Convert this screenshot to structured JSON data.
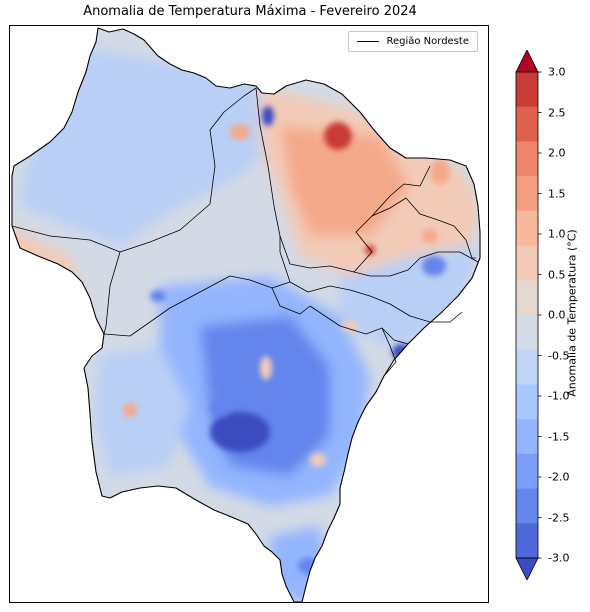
{
  "title": "Anomalia de Temperatura Máxima - Fevereiro 2024",
  "legend": {
    "label": "Região Nordeste"
  },
  "colorbar": {
    "label": "Anomalia de Temperatura (°C)",
    "min": -3.0,
    "max": 3.0,
    "ticks": [
      "3.0",
      "2.5",
      "2.0",
      "1.5",
      "1.0",
      "0.5",
      "0.0",
      "-0.5",
      "-1.0",
      "-1.5",
      "-2.0",
      "-2.5",
      "-3.0"
    ],
    "bins": [
      "#3b4cc0",
      "#4f69d9",
      "#6485ec",
      "#7b9ff9",
      "#93b5fe",
      "#aac7fd",
      "#c0d4f5",
      "#d5dbe5",
      "#e5d8d1",
      "#f2cbb7",
      "#f7b89c",
      "#f59f80",
      "#ee8468",
      "#de614d",
      "#c93b35",
      "#b40426"
    ],
    "extend": "both"
  },
  "colors": {
    "base": "#d3dae6",
    "warm_light": "#f2cbb7",
    "warm": "#f5a98b",
    "hot": "#c93b35",
    "cool_light": "#b9cff5",
    "cool": "#93b5fe",
    "cold": "#6485ec",
    "colder": "#3b4cc0",
    "border": "#000000"
  }
}
